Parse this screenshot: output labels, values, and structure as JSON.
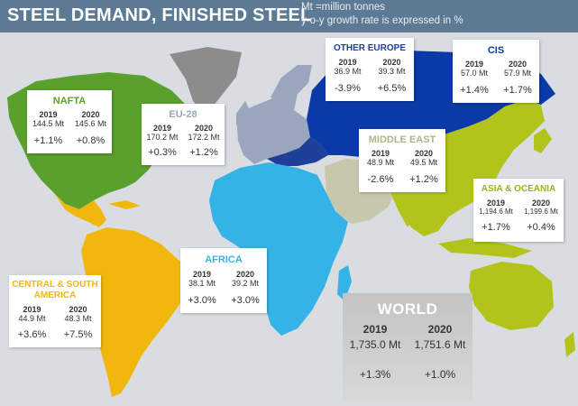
{
  "header": {
    "title": "STEEL DEMAND, FINISHED STEEL",
    "note_line1": "Mt =million tonnes",
    "note_line2": "y-o-y growth rate is expressed in %",
    "background_color": "#5c7a94"
  },
  "region_colors": {
    "nafta": "#5aa02c",
    "central_south_america": "#f2b70c",
    "eu28": "#9aa6bd",
    "other_europe": "#1e3f9a",
    "cis": "#0a3aa8",
    "middle_east": "#c7c7ae",
    "africa": "#36b3e6",
    "asia_oceania": "#b2c41b",
    "greenland": "#8c8c8c"
  },
  "regions": {
    "nafta": {
      "name": "NAFTA",
      "name_color": "#5aa02c",
      "year1": "2019",
      "year2": "2020",
      "value1": "144.5 Mt",
      "value2": "145.6 Mt",
      "growth1": "+1.1%",
      "growth2": "+0.8%"
    },
    "eu28": {
      "name": "EU-28",
      "name_color": "#9aa6bd",
      "year1": "2019",
      "year2": "2020",
      "value1": "170.2 Mt",
      "value2": "172.2 Mt",
      "growth1": "+0.3%",
      "growth2": "+1.2%"
    },
    "other_europe": {
      "name": "OTHER EUROPE",
      "name_color": "#1e3f9a",
      "year1": "2019",
      "year2": "2020",
      "value1": "36.9 Mt",
      "value2": "39.3 Mt",
      "growth1": "-3.9%",
      "growth2": "+6.5%"
    },
    "cis": {
      "name": "CIS",
      "name_color": "#0a3aa8",
      "year1": "2019",
      "year2": "2020",
      "value1": "57.0 Mt",
      "value2": "57.9 Mt",
      "growth1": "+1.4%",
      "growth2": "+1.7%"
    },
    "middle_east": {
      "name": "MIDDLE EAST",
      "name_color": "#b3b38a",
      "year1": "2019",
      "year2": "2020",
      "value1": "48.9 Mt",
      "value2": "49.5 Mt",
      "growth1": "-2.6%",
      "growth2": "+1.2%"
    },
    "asia_oceania": {
      "name": "ASIA & OCEANIA",
      "name_color": "#9fb318",
      "year1": "2019",
      "year2": "2020",
      "value1": "1,194.6 Mt",
      "value2": "1,199.6 Mt",
      "growth1": "+1.7%",
      "growth2": "+0.4%"
    },
    "africa": {
      "name": "AFRICA",
      "name_color": "#36b3e6",
      "year1": "2019",
      "year2": "2020",
      "value1": "38.1 Mt",
      "value2": "39.2 Mt",
      "growth1": "+3.0%",
      "growth2": "+3.0%"
    },
    "central_south_america": {
      "name_line1": "CENTRAL & SOUTH",
      "name_line2": "AMERICA",
      "name_color": "#f2b70c",
      "year1": "2019",
      "year2": "2020",
      "value1": "44.9 Mt",
      "value2": "48.3 Mt",
      "growth1": "+3.6%",
      "growth2": "+7.5%"
    }
  },
  "world": {
    "name": "WORLD",
    "year1": "2019",
    "year2": "2020",
    "value1": "1,735.0 Mt",
    "value2": "1,751.6 Mt",
    "growth1": "+1.3%",
    "growth2": "+1.0%"
  }
}
